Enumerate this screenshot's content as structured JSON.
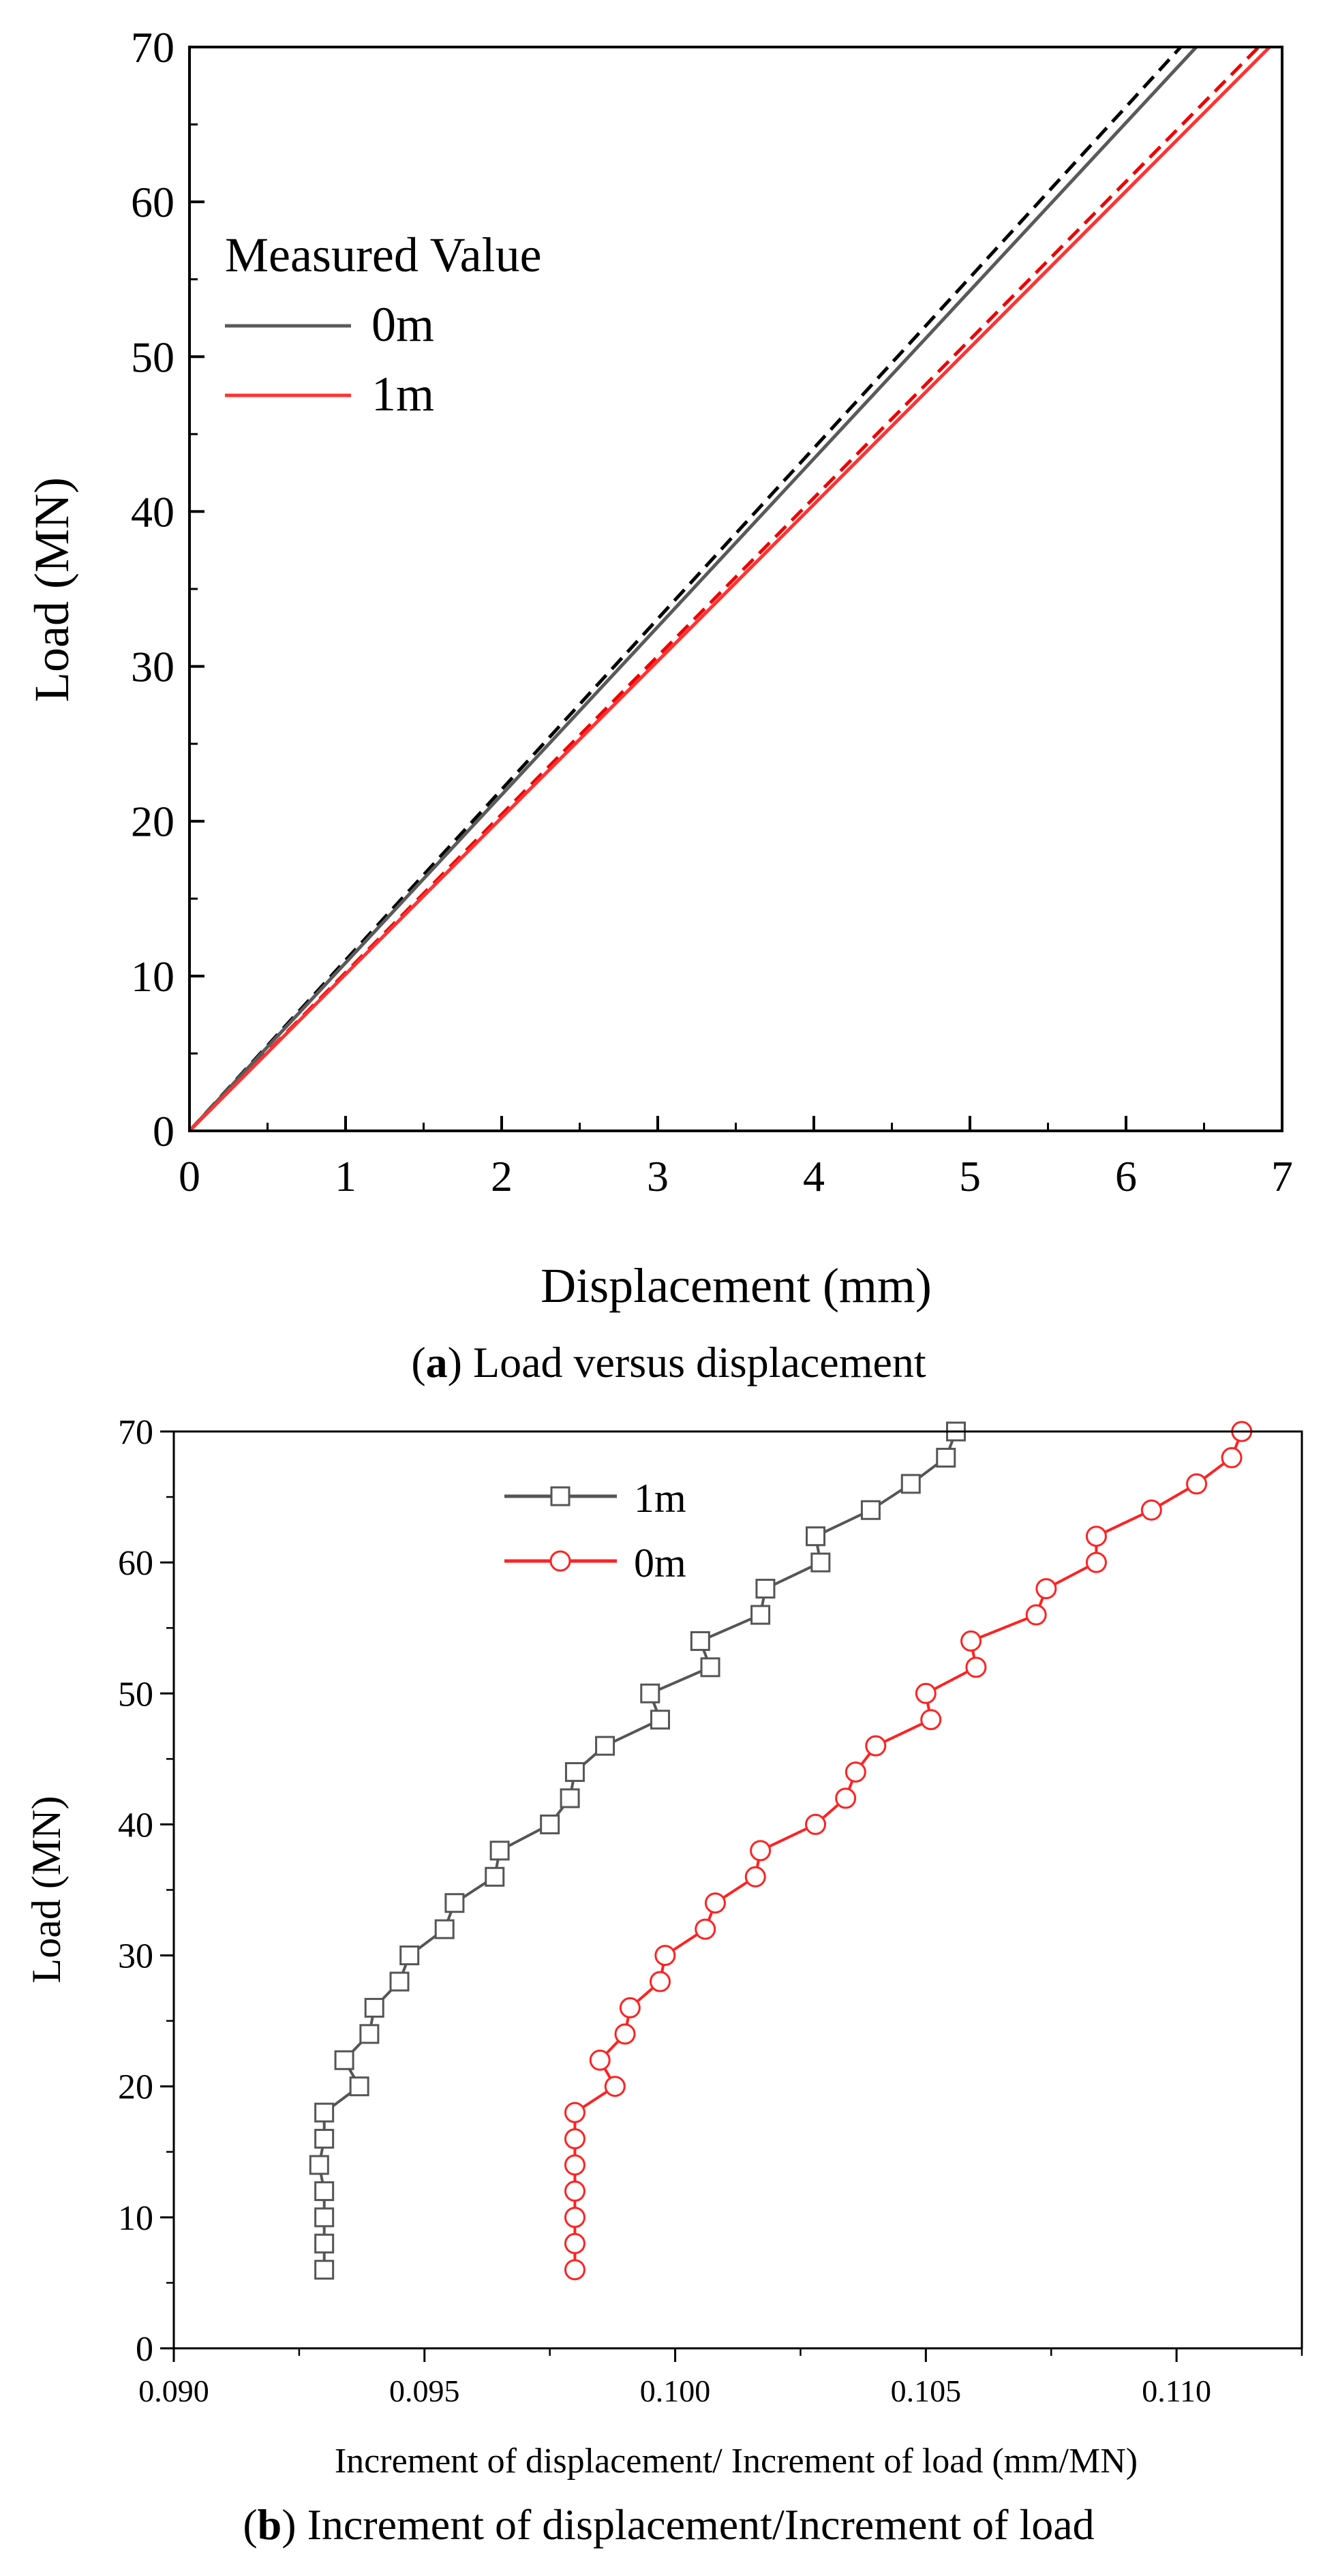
{
  "chart_data": [
    {
      "type": "line",
      "panel": "a",
      "caption_label": "a",
      "caption_text": ") Load versus displacement",
      "xlabel": "Displacement (mm)",
      "ylabel": "Load (MN)",
      "xlim": [
        0,
        7
      ],
      "ylim": [
        0,
        70
      ],
      "xticks": [
        "0",
        "1",
        "2",
        "3",
        "4",
        "5",
        "6",
        "7"
      ],
      "yticks": [
        "0",
        "10",
        "20",
        "30",
        "40",
        "50",
        "60",
        "70"
      ],
      "legend_title": "Measured Value",
      "legend_position": "top-left",
      "series": [
        {
          "name": "0m",
          "style": "solid",
          "color": "#5a5a5a",
          "x": [
            0,
            6.45
          ],
          "y": [
            0,
            70
          ]
        },
        {
          "name": "1m",
          "style": "solid",
          "color": "#ff3333",
          "x": [
            0,
            6.92
          ],
          "y": [
            0,
            70
          ]
        },
        {
          "name": "",
          "style": "dashed",
          "color": "#000000",
          "x": [
            0,
            6.35
          ],
          "y": [
            0,
            70
          ]
        },
        {
          "name": "",
          "style": "dashed",
          "color": "#ee0000",
          "x": [
            0,
            6.85
          ],
          "y": [
            0,
            70
          ]
        }
      ]
    },
    {
      "type": "line",
      "panel": "b",
      "caption_label": "b",
      "caption_text": ") Increment of displacement/Increment of load",
      "xlabel": "Increment of displacement/ Increment of load (mm/MN)",
      "ylabel": "Load (MN)",
      "xlim": [
        0.09,
        0.1125
      ],
      "ylim": [
        0,
        70
      ],
      "xticks": [
        "0.090",
        "0.095",
        "0.100",
        "0.105",
        "0.110"
      ],
      "yticks": [
        "0",
        "10",
        "20",
        "30",
        "40",
        "50",
        "60",
        "70"
      ],
      "legend_position": "top-left",
      "series": [
        {
          "name": "1m",
          "marker": "square",
          "color": "#555555",
          "x": [
            0.093,
            0.093,
            0.093,
            0.093,
            0.0929,
            0.093,
            0.093,
            0.0937,
            0.0934,
            0.0939,
            0.094,
            0.0945,
            0.0947,
            0.0954,
            0.0956,
            0.0964,
            0.0965,
            0.0975,
            0.0979,
            0.098,
            0.0986,
            0.0997,
            0.0995,
            0.1007,
            0.1005,
            0.1017,
            0.1018,
            0.1029,
            0.1028,
            0.1039,
            0.1047,
            0.1054,
            0.1056
          ],
          "y": [
            6,
            8,
            10,
            12,
            14,
            16,
            18,
            20,
            22,
            24,
            26,
            28,
            30,
            32,
            34,
            36,
            38,
            40,
            42,
            44,
            46,
            48,
            50,
            52,
            54,
            56,
            58,
            60,
            62,
            64,
            66,
            68,
            70
          ]
        },
        {
          "name": "0m",
          "marker": "circle",
          "color": "#ff2222",
          "x": [
            0.098,
            0.098,
            0.098,
            0.098,
            0.098,
            0.098,
            0.098,
            0.0988,
            0.0985,
            0.099,
            0.0991,
            0.0997,
            0.0998,
            0.1006,
            0.1008,
            0.1016,
            0.1017,
            0.1028,
            0.1034,
            0.1036,
            0.104,
            0.1051,
            0.105,
            0.106,
            0.1059,
            0.1072,
            0.1074,
            0.1084,
            0.1084,
            0.1095,
            0.1104,
            0.1111,
            0.1113
          ],
          "y": [
            6,
            8,
            10,
            12,
            14,
            16,
            18,
            20,
            22,
            24,
            26,
            28,
            30,
            32,
            34,
            36,
            38,
            40,
            42,
            44,
            46,
            48,
            50,
            52,
            54,
            56,
            58,
            60,
            62,
            64,
            66,
            68,
            70
          ]
        }
      ]
    }
  ]
}
